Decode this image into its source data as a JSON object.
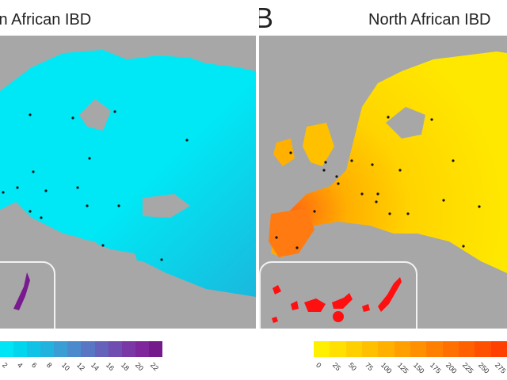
{
  "panels": [
    {
      "letter": "",
      "title": "Saharan African IBD",
      "colorbar_ticks": [
        "2",
        "4",
        "6",
        "8",
        "10",
        "12",
        "14",
        "16",
        "18",
        "20",
        "22"
      ],
      "colorbar_colors": [
        "#00e5f5",
        "#00d5ee",
        "#10c3e6",
        "#22b2de",
        "#3a9ed5",
        "#4a8acd",
        "#5876c4",
        "#6462bb",
        "#704db1",
        "#7a38a6",
        "#7f269c",
        "#741a8a"
      ]
    },
    {
      "letter": "B",
      "title": "North African IBD",
      "colorbar_ticks": [
        "0",
        "25",
        "50",
        "75",
        "100",
        "125",
        "150",
        "175",
        "200",
        "225",
        "250",
        "275"
      ],
      "colorbar_colors": [
        "#ffef00",
        "#ffe000",
        "#ffd000",
        "#ffc000",
        "#ffb000",
        "#ffa000",
        "#ff9000",
        "#ff8000",
        "#ff7000",
        "#ff6000",
        "#ff5000",
        "#ff4000"
      ]
    }
  ],
  "colors": {
    "sea": "#a7a7a7",
    "panel_a_land": "#00e8f5",
    "panel_a_gradient": "#1ab8dc",
    "panel_b_land": "#ffe000",
    "panel_b_hot": "#ff6a10",
    "canary_a": "#7a1a90",
    "canary_b": "#ff1010"
  }
}
